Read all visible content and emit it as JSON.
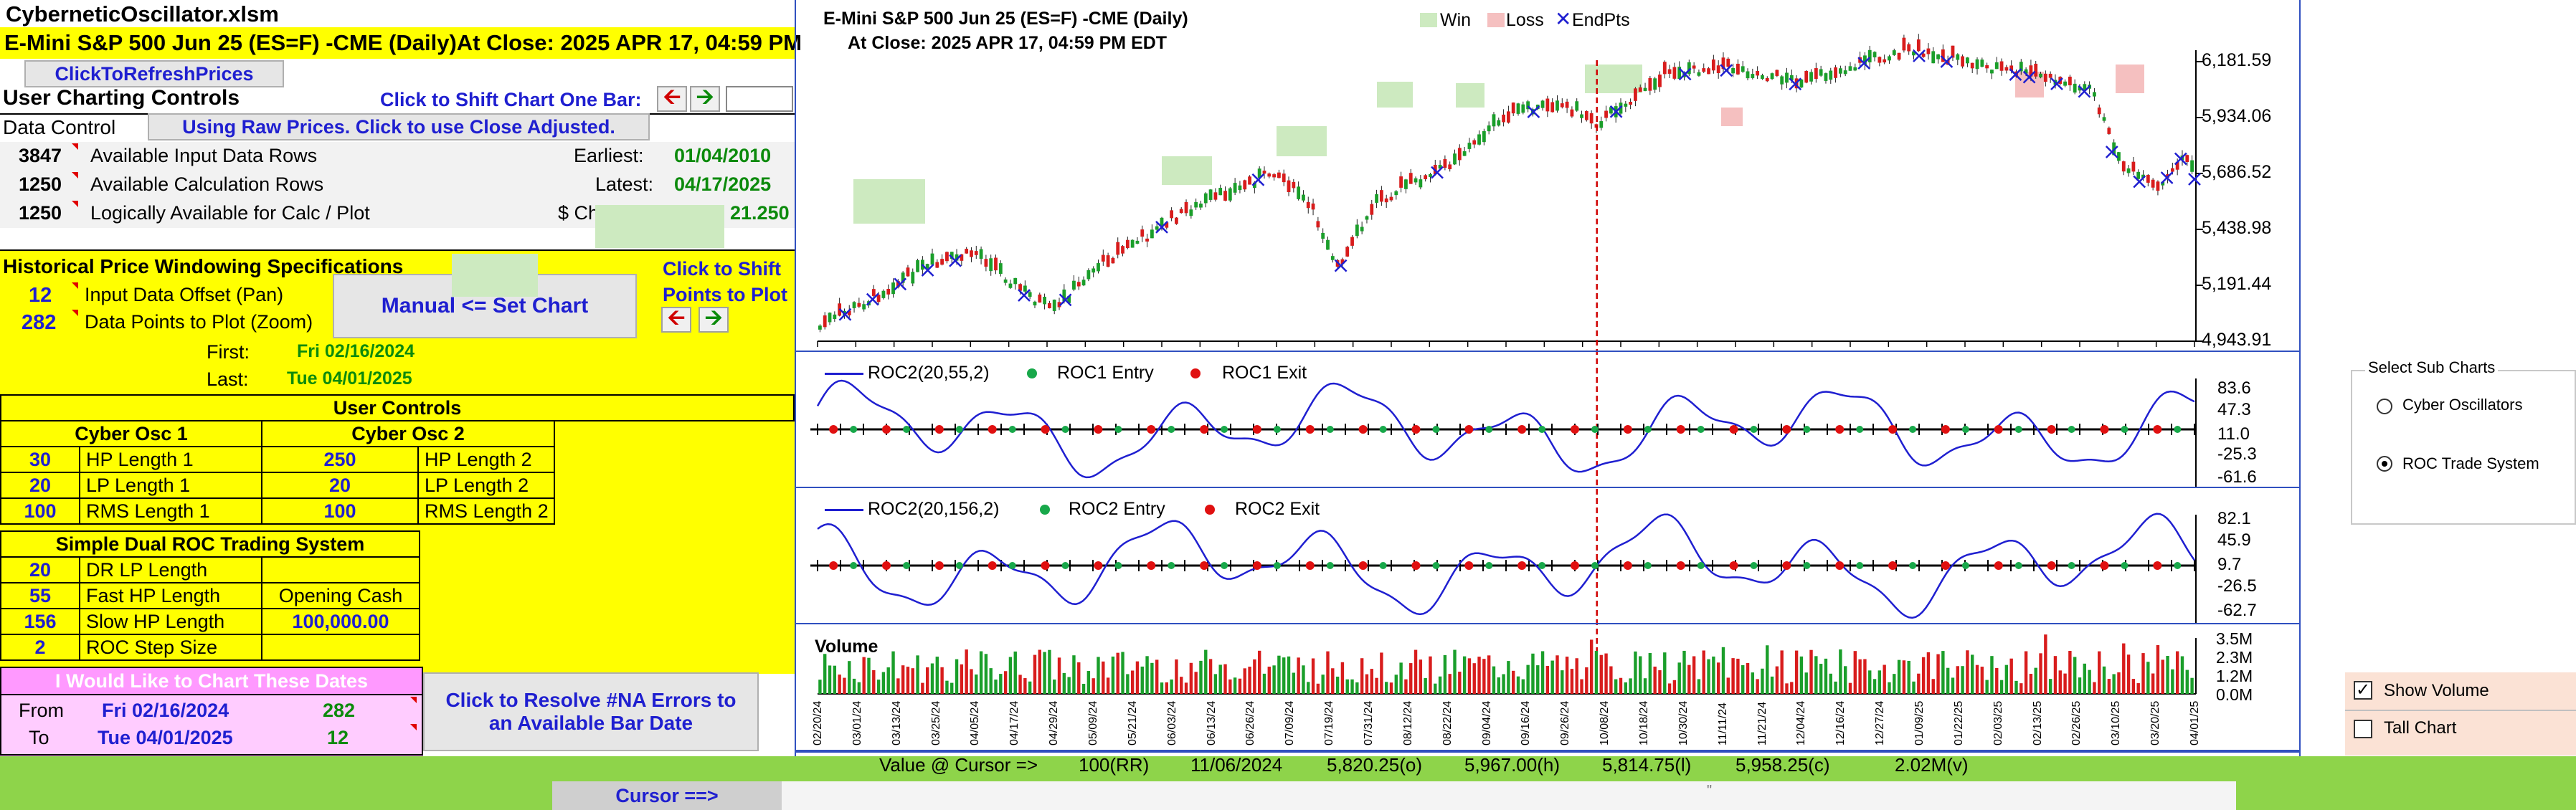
{
  "file_title": "CyberneticOscillator.xlsm",
  "header_line": "E-Mini S&P 500 Jun 25 (ES=F) -CME  (Daily)At Close: 2025 APR 17, 04:59 PM",
  "refresh_button": "ClickToRefreshPrices",
  "user_charting_controls": "User Charting Controls",
  "shift_label": "Click to Shift Chart One Bar:",
  "data_control": "Data Control",
  "raw_prices_button": "Using Raw Prices. Click to use Close Adjusted.",
  "data_rows": [
    {
      "value": "3847",
      "label": "Available Input Data Rows",
      "key": "Earliest:",
      "val": "01/04/2010"
    },
    {
      "value": "1250",
      "label": "Available Calculation Rows",
      "key": "Latest:",
      "val": "04/17/2025"
    },
    {
      "value": "1250",
      "label": "Logically Available for Calc / Plot",
      "key": "$ Change:",
      "val": "21.250"
    }
  ],
  "windowing": {
    "title": "Historical Price Windowing Specifications",
    "offset_value": "12",
    "offset_label": "Input Data Offset (Pan)",
    "points_value": "282",
    "points_label": "Data Points to Plot (Zoom)",
    "set_chart_button": "Manual <= Set Chart",
    "shift_points_1": "Click to Shift",
    "shift_points_2": "Points to Plot",
    "first_label": "First:",
    "first_value": "Fri 02/16/2024",
    "last_label": "Last:",
    "last_value": "Tue 04/01/2025"
  },
  "user_controls": {
    "title": "User Controls",
    "osc1_title": "Cyber Osc 1",
    "osc2_title": "Cyber Osc 2",
    "osc1": [
      {
        "value": "30",
        "label": "HP Length 1"
      },
      {
        "value": "20",
        "label": "LP Length 1"
      },
      {
        "value": "100",
        "label": "RMS Length 1"
      }
    ],
    "osc2": [
      {
        "value": "250",
        "label": "HP Length 2"
      },
      {
        "value": "20",
        "label": "LP Length 2"
      },
      {
        "value": "100",
        "label": "RMS Length 2"
      }
    ]
  },
  "roc_system": {
    "title": "Simple Dual ROC Trading System",
    "rows": [
      {
        "value": "20",
        "label": "DR LP Length",
        "extra": ""
      },
      {
        "value": "55",
        "label": "Fast HP Length",
        "extra": "Opening Cash"
      },
      {
        "value": "156",
        "label": "Slow HP Length",
        "extra": "100,000.00"
      },
      {
        "value": "2",
        "label": "ROC Step Size",
        "extra": ""
      }
    ]
  },
  "chart_dates": {
    "title": "I Would Like to Chart These Dates",
    "from_label": "From",
    "from_date": "Fri 02/16/2024",
    "from_num": "282",
    "to_label": "To",
    "to_date": "Tue 04/01/2025",
    "to_num": "12",
    "resolve_button": "Click to Resolve #NA Errors to an Available Bar Date"
  },
  "price_chart": {
    "title1": "E-Mini S&P 500 Jun 25 (ES=F) -CME  (Daily)",
    "title2": "At Close: 2025 APR 17, 04:59 PM EDT",
    "legend": [
      "Win",
      "Loss",
      "EndPts"
    ],
    "win_color": "#cdeac0",
    "loss_color": "#f5c0c0",
    "y_ticks": [
      "6,181.59",
      "5,934.06",
      "5,686.52",
      "5,438.98",
      "5,191.44",
      "4,943.91"
    ]
  },
  "roc1_chart": {
    "legend": [
      "ROC2(20,55,2)",
      "ROC1 Entry",
      "ROC1 Exit"
    ],
    "y_ticks": [
      "83.6",
      "47.3",
      "11.0",
      "-25.3",
      "-61.6"
    ]
  },
  "roc2_chart": {
    "legend": [
      "ROC2(20,156,2)",
      "ROC2 Entry",
      "ROC2 Exit"
    ],
    "y_ticks": [
      "82.1",
      "45.9",
      "9.7",
      "-26.5",
      "-62.7"
    ]
  },
  "volume_chart": {
    "label": "Volume",
    "y_ticks": [
      "3.5M",
      "2.3M",
      "1.2M",
      "0.0M"
    ],
    "x_labels": [
      "02/20/24",
      "03/01/24",
      "03/13/24",
      "03/25/24",
      "04/05/24",
      "04/17/24",
      "04/29/24",
      "05/09/24",
      "05/21/24",
      "06/03/24",
      "06/13/24",
      "06/26/24",
      "07/09/24",
      "07/19/24",
      "07/31/24",
      "08/12/24",
      "08/22/24",
      "09/04/24",
      "09/16/24",
      "09/26/24",
      "10/08/24",
      "10/18/24",
      "10/30/24",
      "11/11/24",
      "11/21/24",
      "12/04/24",
      "12/16/24",
      "12/27/24",
      "01/09/25",
      "01/22/25",
      "02/03/25",
      "02/13/25",
      "02/26/25",
      "03/10/25",
      "03/20/25",
      "04/01/25"
    ]
  },
  "cursor_readout": {
    "label": "Value @ Cursor =>",
    "rr": "100(RR)",
    "date": "11/06/2024",
    "open": "5,820.25(o)",
    "high": "5,967.00(h)",
    "low": "5,814.75(l)",
    "close": "5,958.25(c)",
    "volume": "2.02M(v)"
  },
  "cursor_label": "Cursor ==>",
  "scroll_mark": "\"",
  "sub_charts": {
    "title": "Select Sub Charts",
    "option1": "Cyber Oscillators",
    "option2": "ROC Trade System",
    "selected": "ROC Trade System"
  },
  "show_volume": "Show Volume",
  "tall_chart": "Tall Chart",
  "colors": {
    "yellow": "#ffff00",
    "pink": "#ff99ff",
    "green_bar": "#8ed44a",
    "blue": "#1f1fd0"
  }
}
